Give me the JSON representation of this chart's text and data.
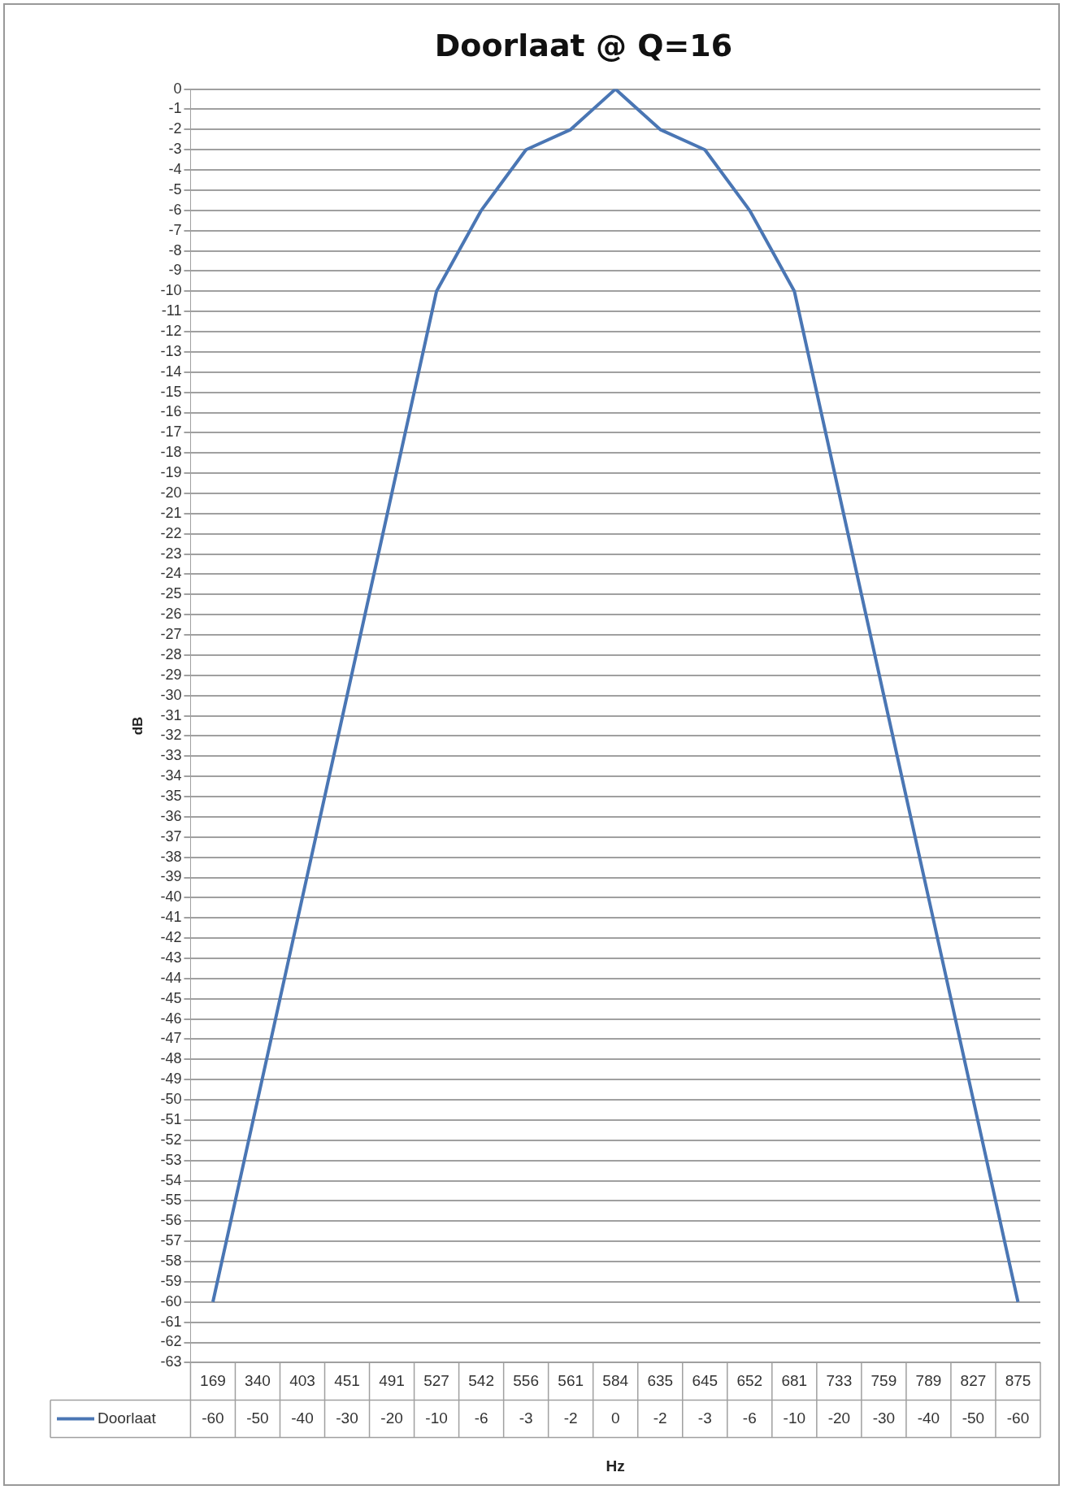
{
  "chart_data": {
    "type": "line",
    "title": "Doorlaat @ Q=16",
    "xlabel": "Hz",
    "ylabel": "dB",
    "categories": [
      "169",
      "340",
      "403",
      "451",
      "491",
      "527",
      "542",
      "556",
      "561",
      "584",
      "635",
      "645",
      "652",
      "681",
      "733",
      "759",
      "789",
      "827",
      "875"
    ],
    "series": [
      {
        "name": "Doorlaat",
        "color": "#4a76b4",
        "values": [
          -60,
          -50,
          -40,
          -30,
          -20,
          -10,
          -6,
          -3,
          -2,
          0,
          -2,
          -3,
          -6,
          -10,
          -20,
          -30,
          -40,
          -50,
          -60
        ]
      }
    ],
    "ylim": [
      -63,
      0
    ],
    "yticks": [
      0,
      -1,
      -2,
      -3,
      -4,
      -5,
      -6,
      -7,
      -8,
      -9,
      -10,
      -11,
      -12,
      -13,
      -14,
      -15,
      -16,
      -17,
      -18,
      -19,
      -20,
      -21,
      -22,
      -23,
      -24,
      -25,
      -26,
      -27,
      -28,
      -29,
      -30,
      -31,
      -32,
      -33,
      -34,
      -35,
      -36,
      -37,
      -38,
      -39,
      -40,
      -41,
      -42,
      -43,
      -44,
      -45,
      -46,
      -47,
      -48,
      -49,
      -50,
      -51,
      -52,
      -53,
      -54,
      -55,
      -56,
      -57,
      -58,
      -59,
      -60,
      -61,
      -62,
      -63
    ],
    "grid": "y",
    "legend": "bottom",
    "data_labels": true,
    "marker": "none",
    "line_style": "solid"
  }
}
